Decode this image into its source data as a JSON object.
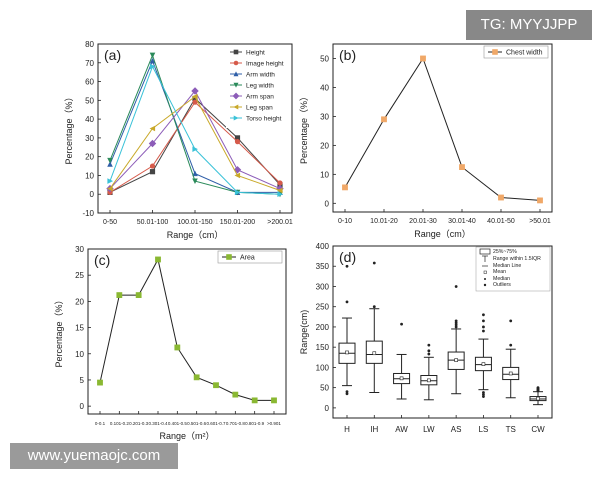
{
  "watermarks": {
    "top": "TG: MYYJJPP",
    "bottom": "www.yuemaojc.com"
  },
  "chart_data": [
    {
      "type": "line",
      "panel": "(a)",
      "title": "",
      "xlabel": "Range（cm）",
      "ylabel": "Percentage（%）",
      "categories": [
        "0-50",
        "50.01-100",
        "100.01-150",
        "150.01-200",
        ">200.01"
      ],
      "ylim": [
        -10,
        80
      ],
      "yticks": [
        -10,
        0,
        10,
        20,
        30,
        40,
        50,
        60,
        70,
        80
      ],
      "legend_position": "top-right",
      "series": [
        {
          "name": "Height",
          "color": "#444444",
          "marker": "square",
          "values": [
            1,
            12,
            51,
            30,
            5
          ]
        },
        {
          "name": "Image height",
          "color": "#d65a4a",
          "marker": "circle",
          "values": [
            1,
            15,
            49,
            28,
            6
          ]
        },
        {
          "name": "Arm width",
          "color": "#2f5fa8",
          "marker": "triangle-up",
          "values": [
            16,
            71,
            11,
            1,
            1
          ]
        },
        {
          "name": "Leg width",
          "color": "#2a8a5a",
          "marker": "triangle-down",
          "values": [
            18,
            74,
            7,
            1,
            0
          ]
        },
        {
          "name": "Arm span",
          "color": "#8c5cb8",
          "marker": "diamond",
          "values": [
            3,
            27,
            55,
            13,
            3
          ]
        },
        {
          "name": "Leg span",
          "color": "#c9a92a",
          "marker": "triangle-left",
          "values": [
            3,
            35,
            52,
            10,
            2
          ]
        },
        {
          "name": "Torso height",
          "color": "#3ac2d8",
          "marker": "triangle-right",
          "values": [
            7,
            68,
            24,
            1,
            0
          ]
        }
      ]
    },
    {
      "type": "line",
      "panel": "(b)",
      "title": "",
      "xlabel": "Range（cm）",
      "ylabel": "Percentage（%）",
      "categories": [
        "0-10",
        "10.01-20",
        "20.01-30",
        "30.01-40",
        "40.01-50",
        ">50.01"
      ],
      "ylim": [
        -3,
        55
      ],
      "yticks": [
        0,
        10,
        20,
        30,
        40,
        50
      ],
      "legend_position": "top-right",
      "series": [
        {
          "name": "Chest width",
          "color": "#f0a868",
          "marker": "square",
          "values": [
            5.5,
            29,
            50,
            12.5,
            2,
            1
          ]
        }
      ]
    },
    {
      "type": "line",
      "panel": "(c)",
      "title": "",
      "xlabel": "Range（m²）",
      "ylabel": "Percentage（%）",
      "categories": [
        "0-0.1",
        "0.101-0.2",
        "0.201-0.3",
        "0.301-0.4",
        "0.401-0.5",
        "0.501-0.6",
        "0.601-0.7",
        "0.701-0.8",
        "0.801-0.9",
        ">0.901"
      ],
      "ylim": [
        -1.5,
        30
      ],
      "yticks": [
        0,
        5,
        10,
        15,
        20,
        25,
        30
      ],
      "legend_position": "top-right",
      "series": [
        {
          "name": "Area",
          "color": "#8ab832",
          "marker": "square",
          "values": [
            4.5,
            21.2,
            21.2,
            28,
            11.2,
            5.5,
            4,
            2.2,
            1.1,
            1.1
          ]
        }
      ]
    },
    {
      "type": "box",
      "panel": "(d)",
      "title": "",
      "xlabel": "",
      "ylabel": "Range(cm)",
      "categories": [
        "H",
        "IH",
        "AW",
        "LW",
        "AS",
        "LS",
        "TS",
        "CW"
      ],
      "ylim": [
        -25,
        400
      ],
      "yticks": [
        0,
        50,
        100,
        150,
        200,
        250,
        300,
        350,
        400
      ],
      "legend_position": "top-right",
      "legend": [
        "25%~75%",
        "Range within 1.5IQR",
        "Median Line",
        "Mean",
        "Median",
        "Outliers"
      ],
      "boxes": [
        {
          "label": "H",
          "q1": 110,
          "median": 135,
          "q3": 160,
          "low": 55,
          "high": 222,
          "mean": 137,
          "outliers": [
            40,
            35,
            262,
            350
          ]
        },
        {
          "label": "IH",
          "q1": 110,
          "median": 132,
          "q3": 165,
          "low": 38,
          "high": 245,
          "mean": 135,
          "outliers": [
            250,
            358
          ]
        },
        {
          "label": "AW",
          "q1": 60,
          "median": 72,
          "q3": 85,
          "low": 22,
          "high": 132,
          "mean": 73,
          "outliers": [
            207
          ]
        },
        {
          "label": "LW",
          "q1": 57,
          "median": 67,
          "q3": 80,
          "low": 20,
          "high": 125,
          "mean": 68,
          "outliers": [
            133,
            141,
            155
          ]
        },
        {
          "label": "AS",
          "q1": 95,
          "median": 118,
          "q3": 138,
          "low": 35,
          "high": 195,
          "mean": 118,
          "outliers": [
            200,
            205,
            210,
            215,
            300
          ]
        },
        {
          "label": "LS",
          "q1": 92,
          "median": 107,
          "q3": 125,
          "low": 45,
          "high": 170,
          "mean": 108,
          "outliers": [
            28,
            33,
            38,
            190,
            200,
            215,
            230
          ]
        },
        {
          "label": "TS",
          "q1": 70,
          "median": 83,
          "q3": 100,
          "low": 25,
          "high": 145,
          "mean": 85,
          "outliers": [
            155,
            215
          ]
        },
        {
          "label": "CW",
          "q1": 18,
          "median": 22,
          "q3": 28,
          "low": 8,
          "high": 40,
          "mean": 23,
          "outliers": [
            42,
            44,
            46,
            48,
            50
          ]
        }
      ]
    }
  ]
}
